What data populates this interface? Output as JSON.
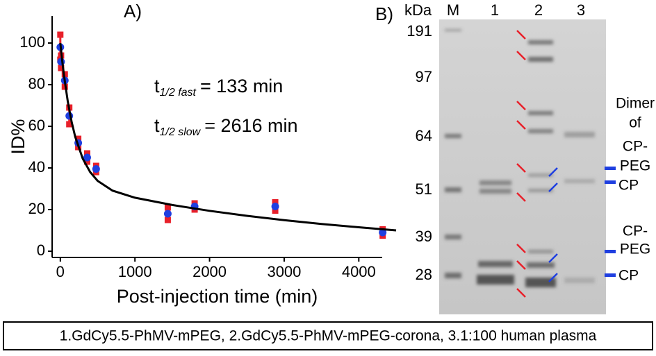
{
  "chart_data": {
    "type": "scatter",
    "panel_label": "A)",
    "x_label": "Post-injection time (min)",
    "y_label": "ID%",
    "xlim": [
      -110,
      4500
    ],
    "xticks": [
      0,
      1000,
      2000,
      3000,
      4000
    ],
    "ylim": [
      -3,
      113
    ],
    "yticks": [
      0,
      20,
      40,
      60,
      80,
      100
    ],
    "annotations": [
      {
        "main": "t",
        "sub": "1/2 fast",
        "rest": "= 133 min"
      },
      {
        "main": "t",
        "sub": "1/2 slow",
        "rest": "= 2616 min"
      }
    ],
    "series": [
      {
        "kind": "points",
        "color": "#1f3fe0",
        "error_color": "#e8202a",
        "x": [
          0,
          10,
          60,
          120,
          240,
          360,
          480,
          1440,
          1800,
          2880,
          4320
        ],
        "values": [
          98,
          91,
          82,
          65,
          52,
          45,
          39.5,
          18,
          21.5,
          21.5,
          9
        ],
        "errors": [
          6,
          3,
          3,
          4,
          2,
          2,
          1.5,
          3,
          1.5,
          2,
          1.5
        ]
      },
      {
        "kind": "line",
        "color": "#000000",
        "x": [
          0,
          25,
          50,
          100,
          150,
          200,
          300,
          400,
          500,
          700,
          1000,
          1500,
          2000,
          2500,
          3000,
          3500,
          4000,
          4500
        ],
        "values": [
          100,
          91.6,
          84.2,
          71.9,
          62.4,
          54.9,
          44.5,
          38.0,
          33.8,
          29.1,
          25.7,
          22.2,
          19.4,
          17.0,
          14.9,
          13.1,
          11.5,
          10.0
        ]
      }
    ]
  },
  "gel": {
    "panel_label": "B)",
    "unit_label": "kDa",
    "lanes": [
      "M",
      "1",
      "2",
      "3"
    ],
    "markers": [
      191,
      97,
      64,
      51,
      39,
      28
    ],
    "right_labels": [
      "Dimer",
      "of",
      "CP-",
      "PEG",
      "CP",
      "CP-",
      "PEG",
      "CP"
    ]
  },
  "caption": "1.GdCy5.5-PhMV-mPEG, 2.GdCy5.5-PhMV-mPEG-corona, 3.1:100 human plasma"
}
